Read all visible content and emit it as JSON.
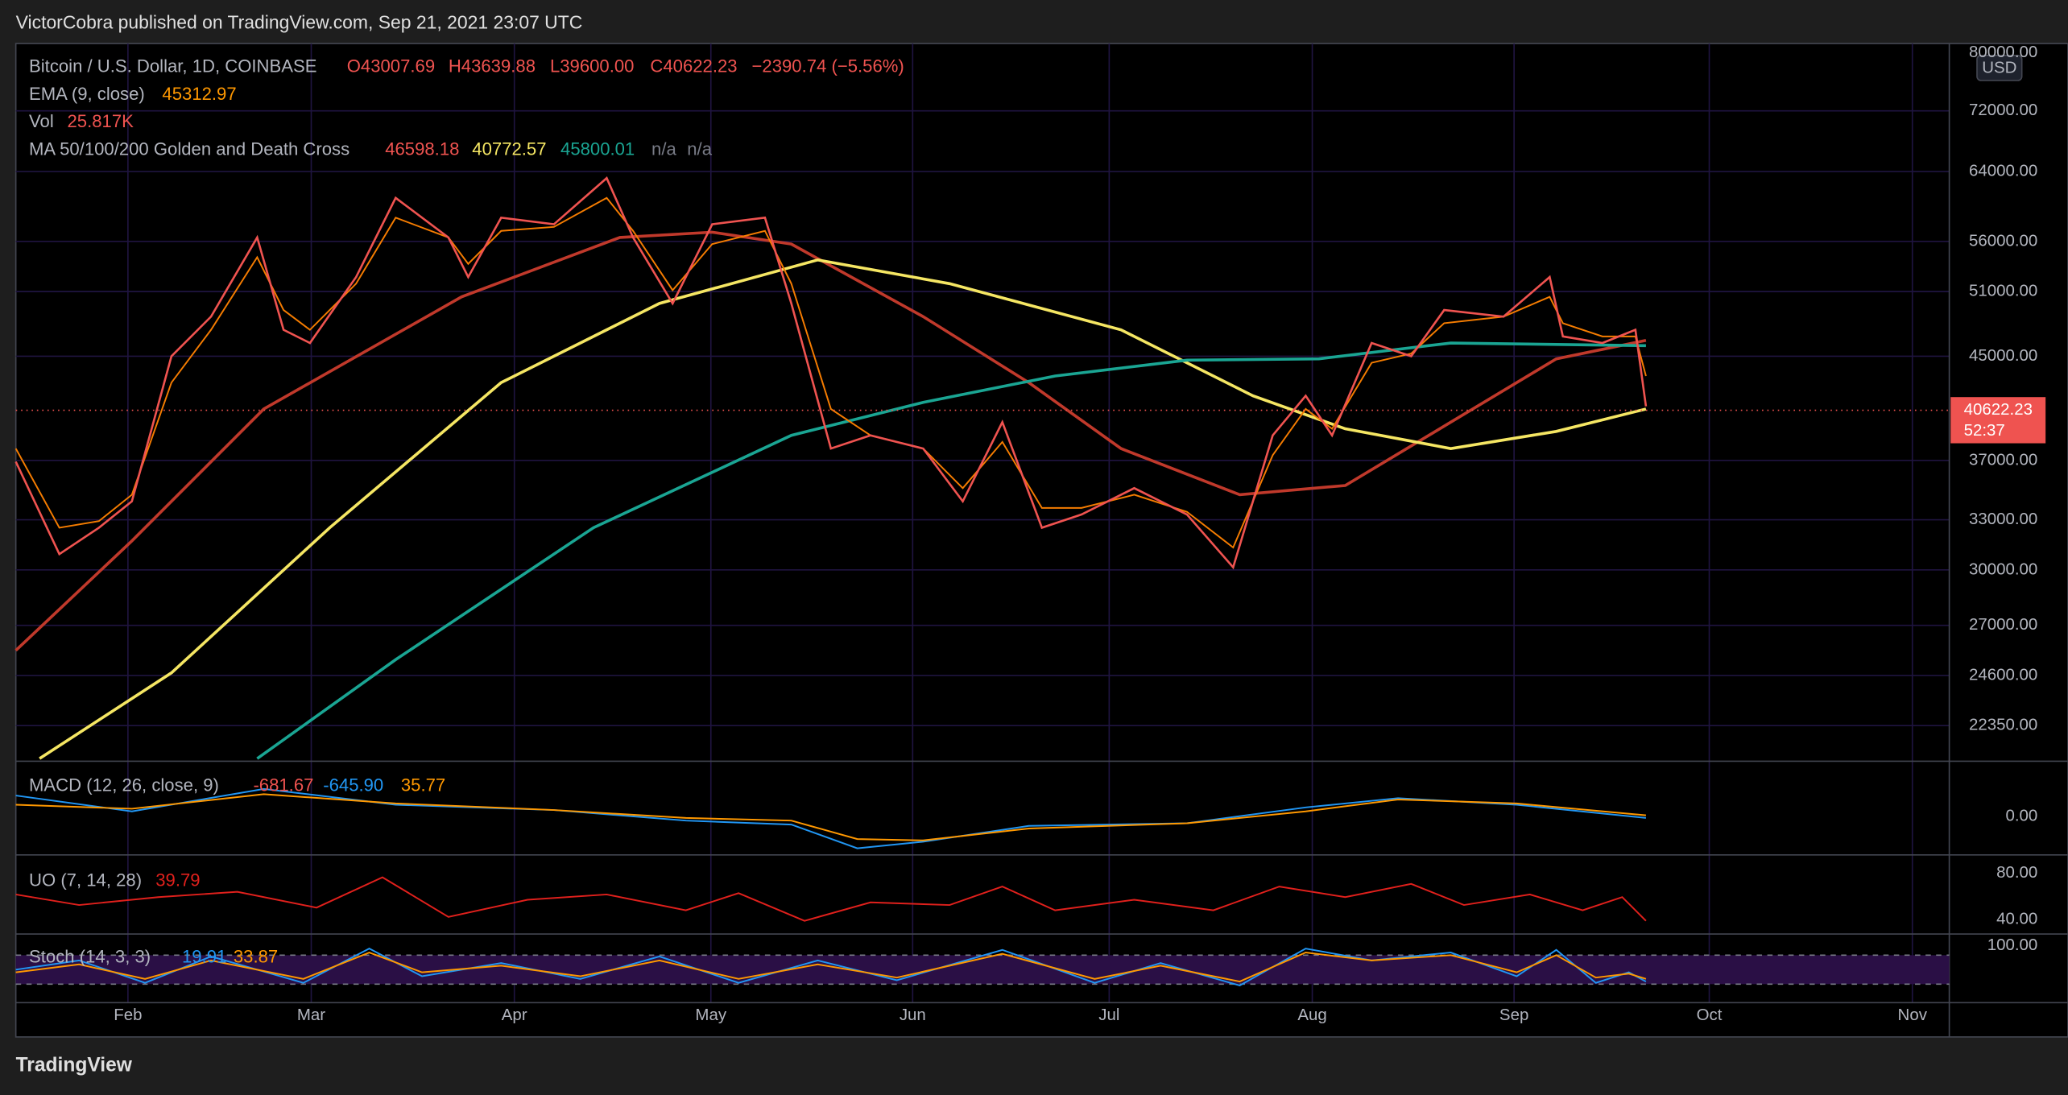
{
  "header": {
    "attribution": "VictorCobra published on TradingView.com, Sep 21, 2021 23:07 UTC"
  },
  "legend": {
    "symbol": "Bitcoin / U.S. Dollar, 1D, COINBASE",
    "open": "O43007.69",
    "high": "H43639.88",
    "low": "L39600.00",
    "close": "C40622.23",
    "change": "−2390.74 (−5.56%)",
    "ema": {
      "label": "EMA (9, close)",
      "value": "45312.97"
    },
    "vol": {
      "label": "Vol",
      "value": "25.817K"
    },
    "ma": {
      "label": "MA 50/100/200 Golden and Death Cross",
      "values": [
        "46598.18",
        "40772.57",
        "45800.01",
        "n/a",
        "n/a"
      ]
    }
  },
  "price_axis": {
    "currency": "USD",
    "ticks": [
      "80000.00",
      "72000.00",
      "64000.00",
      "56000.00",
      "51000.00",
      "45000.00",
      "37000.00",
      "33000.00",
      "30000.00",
      "27000.00",
      "24600.00",
      "22350.00"
    ],
    "last_price": "40622.23",
    "countdown": "52:37"
  },
  "macd": {
    "label": "MACD (12, 26, close, 9)",
    "values": [
      "-681.67",
      "-645.90",
      "35.77"
    ],
    "ticks": [
      "0.00"
    ]
  },
  "uo": {
    "label": "UO (7, 14, 28)",
    "value": "39.79",
    "ticks": [
      "80.00",
      "40.00"
    ]
  },
  "stoch": {
    "label": "Stoch (14, 3, 3)",
    "values": [
      "19.91",
      "33.87"
    ],
    "ticks": [
      "100.00"
    ]
  },
  "time_axis": [
    "Feb",
    "Mar",
    "Apr",
    "May",
    "Jun",
    "Jul",
    "Aug",
    "Sep",
    "Oct",
    "Nov"
  ],
  "footer": {
    "brand": "TradingView"
  }
}
